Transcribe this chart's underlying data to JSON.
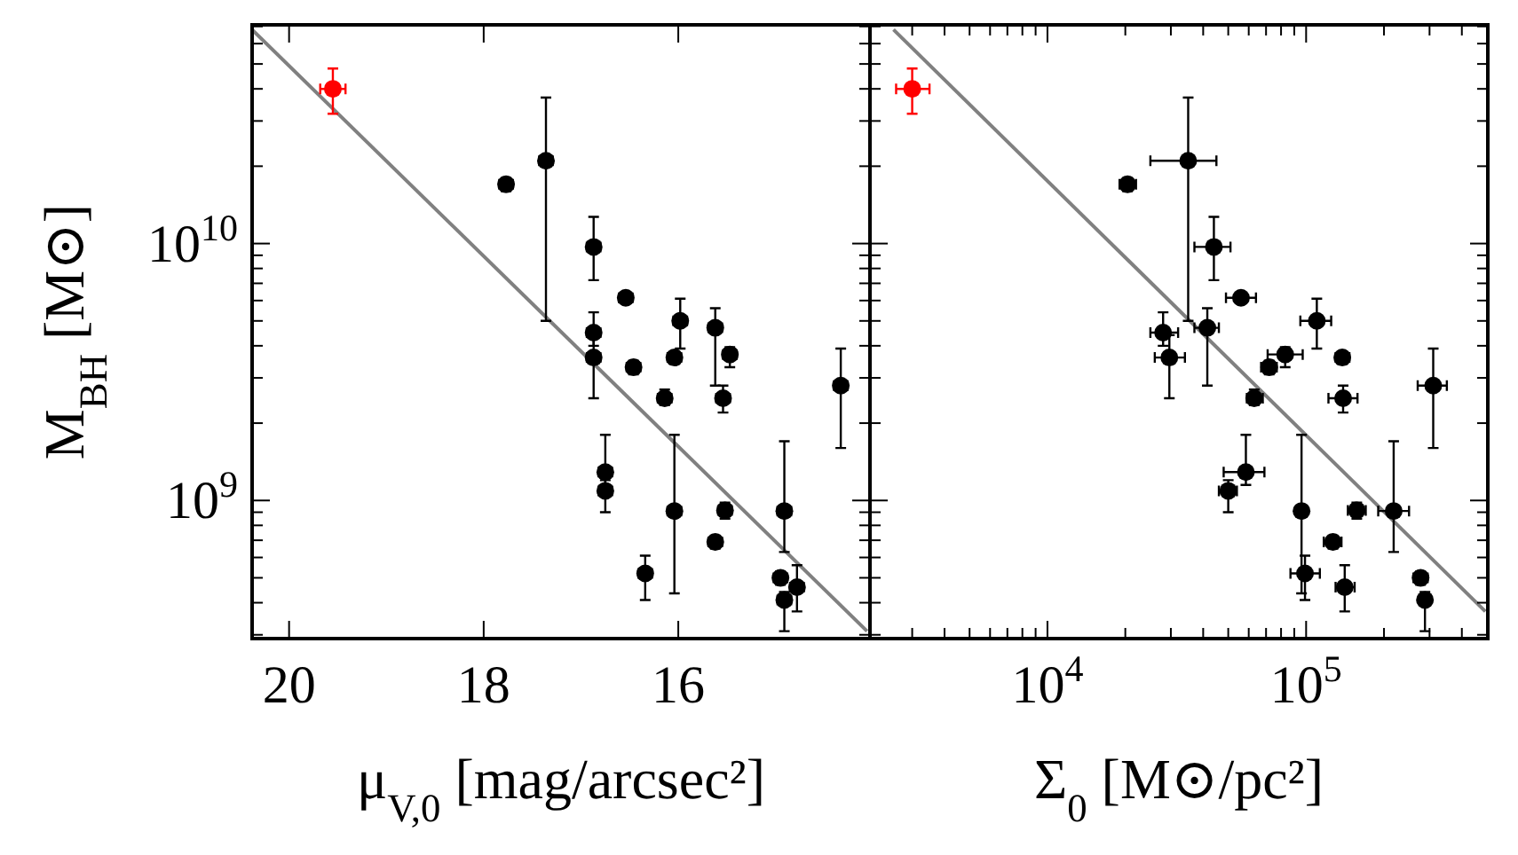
{
  "chart_data": [
    {
      "type": "scatter",
      "xlabel": "μ$_{V,0}$ [mag/arcsec²]",
      "ylabel": "M$_{BH}$ [M⊙]",
      "log": "y",
      "marker": "circle",
      "xlim": [
        20.38,
        14.03
      ],
      "ylim": [
        290000000.0,
        71000000000.0
      ],
      "xticks": [
        20,
        18,
        16
      ],
      "yticks": [
        {
          "value": 300000000.0,
          "label": null
        },
        {
          "value": 400000000.0,
          "label": null
        },
        {
          "value": 500000000.0,
          "label": null
        },
        {
          "value": 600000000.0,
          "label": null
        },
        {
          "value": 700000000.0,
          "label": null
        },
        {
          "value": 800000000.0,
          "label": null
        },
        {
          "value": 900000000.0,
          "label": null
        },
        {
          "value": 1000000000.0,
          "label": "10$^{9}$"
        },
        {
          "value": 2000000000.0,
          "label": null
        },
        {
          "value": 3000000000.0,
          "label": null
        },
        {
          "value": 4000000000.0,
          "label": null
        },
        {
          "value": 5000000000.0,
          "label": null
        },
        {
          "value": 6000000000.0,
          "label": null
        },
        {
          "value": 7000000000.0,
          "label": null
        },
        {
          "value": 8000000000.0,
          "label": null
        },
        {
          "value": 9000000000.0,
          "label": null
        },
        {
          "value": 10000000000.0,
          "label": "10$^{10}$"
        },
        {
          "value": 20000000000.0,
          "label": null
        },
        {
          "value": 30000000000.0,
          "label": null
        },
        {
          "value": 40000000000.0,
          "label": null
        },
        {
          "value": 50000000000.0,
          "label": null
        },
        {
          "value": 60000000000.0,
          "label": null
        },
        {
          "value": 70000000000.0,
          "label": null
        }
      ],
      "series": [
        {
          "color": "#000000",
          "x": [
            17.77,
            17.36,
            16.87,
            16.54,
            16.87,
            16.87,
            16.46,
            16.14,
            15.98,
            16.04,
            15.62,
            15.47,
            15.54,
            14.33,
            16.75,
            16.75,
            16.04,
            15.52,
            15.62,
            16.34,
            14.91,
            14.95,
            14.78,
            14.91
          ],
          "values": [
            17000000000.0,
            21000000000.0,
            9700000000.0,
            6150000000.0,
            4500000000.0,
            3600000000.0,
            3300000000.0,
            2500000000.0,
            5000000000.0,
            3600000000.0,
            4700000000.0,
            3700000000.0,
            2500000000.0,
            2800000000.0,
            1290000000.0,
            1090000000.0,
            910000000.0,
            915000000.0,
            690000000.0,
            520000000.0,
            910000000.0,
            500000000.0,
            460000000.0,
            410000000.0
          ],
          "errors": [
            [
              16000000000.0,
              18000000000.0
            ],
            [
              5000000000.0,
              37000000000.0
            ],
            [
              7200000000.0,
              12700000000.0
            ],
            [
              5900000000.0,
              6400000000.0
            ],
            [
              4000000000.0,
              5400000000.0
            ],
            [
              2500000000.0,
              4400000000.0
            ],
            [
              3100000000.0,
              3500000000.0
            ],
            [
              2350000000.0,
              2700000000.0
            ],
            [
              3900000000.0,
              6100000000.0
            ],
            [
              3400000000.0,
              3800000000.0
            ],
            [
              2800000000.0,
              5600000000.0
            ],
            [
              3300000000.0,
              3950000000.0
            ],
            [
              2200000000.0,
              2800000000.0
            ],
            [
              1600000000.0,
              3900000000.0
            ],
            [
              1150000000.0,
              1800000000.0
            ],
            [
              900000000.0,
              1200000000.0
            ],
            [
              435000000.0,
              1800000000.0
            ],
            [
              850000000.0,
              980000000.0
            ],
            [
              650000000.0,
              730000000.0
            ],
            [
              410000000.0,
              610000000.0
            ],
            [
              630000000.0,
              1700000000.0
            ],
            [
              470000000.0,
              530000000.0
            ],
            [
              370000000.0,
              560000000.0
            ],
            [
              310000000.0,
              440000000.0
            ]
          ],
          "xerrors": [
            0.07,
            0.07,
            0.07,
            0.07,
            0.07,
            0.07,
            0.07,
            0.07,
            0.07,
            0.07,
            0.07,
            0.07,
            0.07,
            0.07,
            0.07,
            0.07,
            0.07,
            0.07,
            0.07,
            0.07,
            0.07,
            0.07,
            0.07,
            0.07
          ]
        },
        {
          "color": "#ff0000",
          "x": [
            19.55
          ],
          "values": [
            40000000000.0
          ],
          "errors": [
            [
              32000000000.0,
              48000000000.0
            ]
          ],
          "xerrors": [
            0.13
          ]
        },
        {
          "type": "line",
          "marker": "none",
          "color": "#808080",
          "x": [
            20.38,
            14.06
          ],
          "values": [
            68000000000.0,
            310000000.0
          ]
        }
      ]
    },
    {
      "type": "scatter",
      "xlabel": "Σ$_{0}$ [M⊙/pc²]",
      "log": "xy",
      "marker": "circle",
      "tick_labels": "x",
      "xlim": [
        2060,
        504000.0
      ],
      "ylim": [
        290000000.0,
        71000000000.0
      ],
      "xticks": [
        {
          "value": 3000.0,
          "label": null
        },
        {
          "value": 4000.0,
          "label": null
        },
        {
          "value": 5000.0,
          "label": null
        },
        {
          "value": 6000.0,
          "label": null
        },
        {
          "value": 7000.0,
          "label": null
        },
        {
          "value": 8000.0,
          "label": null
        },
        {
          "value": 9000.0,
          "label": null
        },
        {
          "value": 10000.0,
          "label": "10$^{4}$"
        },
        {
          "value": 20000.0,
          "label": null
        },
        {
          "value": 30000.0,
          "label": null
        },
        {
          "value": 40000.0,
          "label": null
        },
        {
          "value": 50000.0,
          "label": null
        },
        {
          "value": 60000.0,
          "label": null
        },
        {
          "value": 70000.0,
          "label": null
        },
        {
          "value": 80000.0,
          "label": null
        },
        {
          "value": 90000.0,
          "label": null
        },
        {
          "value": 100000.0,
          "label": "10$^{5}$"
        },
        {
          "value": 200000.0,
          "label": null
        },
        {
          "value": 300000.0,
          "label": null
        },
        {
          "value": 400000.0,
          "label": null
        },
        {
          "value": 500000.0,
          "label": null
        }
      ],
      "yticks": [
        {
          "value": 300000000.0,
          "label": null
        },
        {
          "value": 400000000.0,
          "label": null
        },
        {
          "value": 500000000.0,
          "label": null
        },
        {
          "value": 600000000.0,
          "label": null
        },
        {
          "value": 700000000.0,
          "label": null
        },
        {
          "value": 800000000.0,
          "label": null
        },
        {
          "value": 900000000.0,
          "label": null
        },
        {
          "value": 1000000000.0,
          "label": null
        },
        {
          "value": 2000000000.0,
          "label": null
        },
        {
          "value": 3000000000.0,
          "label": null
        },
        {
          "value": 4000000000.0,
          "label": null
        },
        {
          "value": 5000000000.0,
          "label": null
        },
        {
          "value": 6000000000.0,
          "label": null
        },
        {
          "value": 7000000000.0,
          "label": null
        },
        {
          "value": 8000000000.0,
          "label": null
        },
        {
          "value": 9000000000.0,
          "label": null
        },
        {
          "value": 10000000000.0,
          "label": null
        },
        {
          "value": 20000000000.0,
          "label": null
        },
        {
          "value": 30000000000.0,
          "label": null
        },
        {
          "value": 40000000000.0,
          "label": null
        },
        {
          "value": 50000000000.0,
          "label": null
        },
        {
          "value": 60000000000.0,
          "label": null
        },
        {
          "value": 70000000000.0,
          "label": null
        }
      ],
      "series": [
        {
          "color": "#000000",
          "x": [
            20400.0,
            35000.0,
            44000.0,
            56000.0,
            28000.0,
            29600.0,
            72000.0,
            63000.0,
            110000.0,
            138000.0,
            41500.0,
            83000.0,
            139000.0,
            310000.0,
            58500.0,
            50000.0,
            96000.0,
            157000.0,
            127000.0,
            99000.0,
            218000.0,
            277000.0,
            141000.0,
            288000.0
          ],
          "values": [
            17000000000.0,
            21000000000.0,
            9700000000.0,
            6150000000.0,
            4500000000.0,
            3600000000.0,
            3300000000.0,
            2500000000.0,
            5000000000.0,
            3600000000.0,
            4700000000.0,
            3700000000.0,
            2500000000.0,
            2800000000.0,
            1290000000.0,
            1090000000.0,
            910000000.0,
            915000000.0,
            690000000.0,
            520000000.0,
            910000000.0,
            500000000.0,
            460000000.0,
            410000000.0
          ],
          "errors": [
            [
              16000000000.0,
              18000000000.0
            ],
            [
              5000000000.0,
              37000000000.0
            ],
            [
              7200000000.0,
              12700000000.0
            ],
            null,
            [
              4000000000.0,
              5400000000.0
            ],
            [
              2500000000.0,
              4400000000.0
            ],
            [
              3100000000.0,
              3500000000.0
            ],
            [
              2350000000.0,
              2700000000.0
            ],
            [
              3900000000.0,
              6100000000.0
            ],
            [
              3400000000.0,
              3800000000.0
            ],
            [
              2800000000.0,
              5600000000.0
            ],
            [
              3300000000.0,
              3950000000.0
            ],
            [
              2200000000.0,
              2800000000.0
            ],
            [
              1600000000.0,
              3900000000.0
            ],
            [
              1150000000.0,
              1800000000.0
            ],
            [
              900000000.0,
              1200000000.0
            ],
            [
              435000000.0,
              1800000000.0
            ],
            [
              850000000.0,
              980000000.0
            ],
            [
              650000000.0,
              730000000.0
            ],
            [
              410000000.0,
              610000000.0
            ],
            [
              630000000.0,
              1700000000.0
            ],
            [
              470000000.0,
              530000000.0
            ],
            [
              370000000.0,
              560000000.0
            ],
            [
              310000000.0,
              440000000.0
            ]
          ],
          "xerrors": [
            [
              19000.0,
              22000.0
            ],
            [
              25000.0,
              45000.0
            ],
            [
              37000.0,
              51000.0
            ],
            [
              49000.0,
              64000.0
            ],
            [
              25000.0,
              32000.0
            ],
            [
              26000.0,
              34000.0
            ],
            [
              67000.0,
              77000.0
            ],
            [
              59000.0,
              68000.0
            ],
            [
              95000.0,
              125000.0
            ],
            [
              130000.0,
              147000.0
            ],
            [
              37000.0,
              46000.0
            ],
            [
              71000.0,
              97000.0
            ],
            [
              122000.0,
              158000.0
            ],
            [
              270000.0,
              350000.0
            ],
            [
              48000.0,
              69000.0
            ],
            [
              46000.0,
              54000.0
            ],
            null,
            [
              145000.0,
              170000.0
            ],
            [
              117000.0,
              137000.0
            ],
            [
              87000.0,
              113000.0
            ],
            [
              190000.0,
              250000.0
            ],
            [
              260000.0,
              295000.0
            ],
            [
              130000.0,
              154000.0
            ],
            [
              275000.0,
              300000.0
            ]
          ]
        },
        {
          "color": "#ff0000",
          "x": [
            3000.0
          ],
          "values": [
            40000000000.0
          ],
          "errors": [
            [
              32000000000.0,
              48000000000.0
            ]
          ],
          "xerrors": [
            [
              2600.0,
              3500.0
            ]
          ]
        },
        {
          "type": "line",
          "marker": "none",
          "color": "#808080",
          "x": [
            2540,
            493000.0
          ],
          "values": [
            68000000000.0,
            370000000.0
          ]
        }
      ]
    }
  ]
}
